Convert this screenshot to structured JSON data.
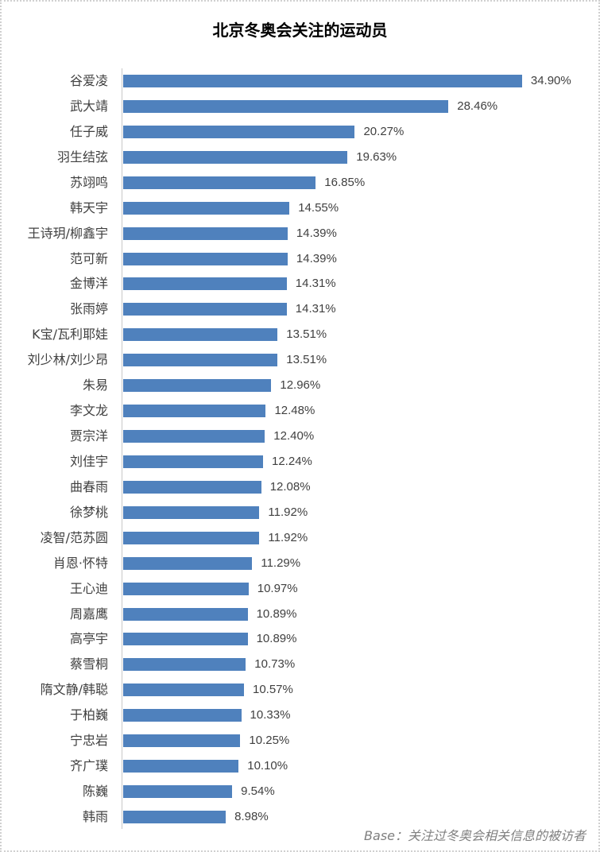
{
  "chart_data": {
    "type": "bar",
    "orientation": "horizontal",
    "title": "北京冬奥会关注的运动员",
    "xlabel": "",
    "ylabel": "",
    "grid": false,
    "legend": null,
    "bar_color": "#4f81bd",
    "value_format": "percent",
    "categories": [
      "谷爱凌",
      "武大靖",
      "任子威",
      "羽生结弦",
      "苏翊鸣",
      "韩天宇",
      "王诗玥/柳鑫宇",
      "范可新",
      "金博洋",
      "张雨婷",
      "K宝/瓦利耶娃",
      "刘少林/刘少昂",
      "朱易",
      "李文龙",
      "贾宗洋",
      "刘佳宇",
      "曲春雨",
      "徐梦桃",
      "凌智/范苏圆",
      "肖恩·怀特",
      "王心迪",
      "周嘉鹰",
      "高亭宇",
      "蔡雪桐",
      "隋文静/韩聪",
      "于柏巍",
      "宁忠岩",
      "齐广璞",
      "陈巍",
      "韩雨"
    ],
    "values": [
      34.9,
      28.46,
      20.27,
      19.63,
      16.85,
      14.55,
      14.39,
      14.39,
      14.31,
      14.31,
      13.51,
      13.51,
      12.96,
      12.48,
      12.4,
      12.24,
      12.08,
      11.92,
      11.92,
      11.29,
      10.97,
      10.89,
      10.89,
      10.73,
      10.57,
      10.33,
      10.25,
      10.1,
      9.54,
      8.98
    ],
    "value_labels": [
      "34.90%",
      "28.46%",
      "20.27%",
      "19.63%",
      "16.85%",
      "14.55%",
      "14.39%",
      "14.39%",
      "14.31%",
      "14.31%",
      "13.51%",
      "13.51%",
      "12.96%",
      "12.48%",
      "12.40%",
      "12.24%",
      "12.08%",
      "11.92%",
      "11.92%",
      "11.29%",
      "10.97%",
      "10.89%",
      "10.89%",
      "10.73%",
      "10.57%",
      "10.33%",
      "10.25%",
      "10.10%",
      "9.54%",
      "8.98%"
    ],
    "footnote": "Base：关注过冬奥会相关信息的被访者"
  }
}
